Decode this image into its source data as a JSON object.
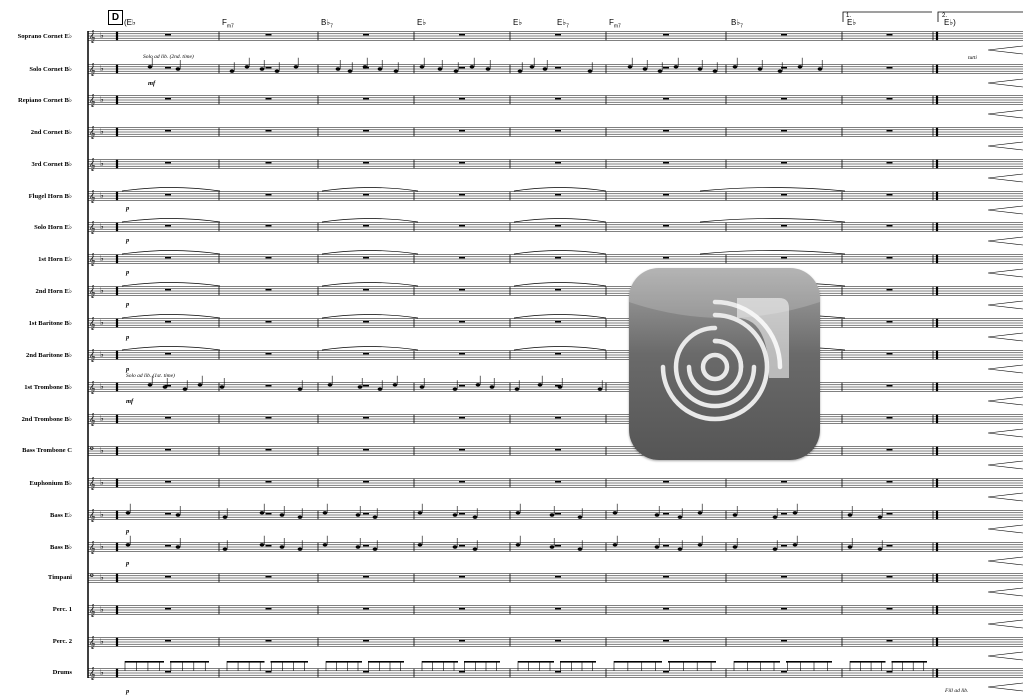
{
  "rehearsal_mark": "D",
  "instruments": [
    "Soprano Cornet E♭",
    "Solo Cornet B♭",
    "Repiano Cornet B♭",
    "2nd Cornet B♭",
    "3rd Cornet B♭",
    "Flugel Horn B♭",
    "Solo Horn E♭",
    "1st Horn E♭",
    "2nd Horn E♭",
    "1st Baritone B♭",
    "2nd Baritone B♭",
    "1st Trombone B♭",
    "2nd Trombone B♭",
    "Bass Trombone C",
    "Euphonium B♭",
    "Bass E♭",
    "Bass B♭",
    "Timpani",
    "Perc. 1",
    "Perc. 2",
    "Drums"
  ],
  "chords": {
    "c1": "(E♭",
    "c2_root": "F",
    "c2_q": "m7",
    "c3_root": "B♭",
    "c3_q": "7",
    "c4": "E♭",
    "c5": "E♭",
    "c6_root": "E♭",
    "c6_q": "7",
    "c7_root": "F",
    "c7_q": "m7",
    "c8_root": "B♭",
    "c8_q": "7",
    "c9": "E♭",
    "c10": "E♭)"
  },
  "endings": {
    "first": "1.",
    "second": "2."
  },
  "annotations": {
    "solo_cornet": "Solo ad lib. (2nd. time)",
    "solo_trombone": "Solo ad lib. (1st. time)",
    "tutti": "tutti",
    "fill": "Fill ad lib."
  },
  "dynamics": {
    "mf": "mf",
    "p": "p"
  },
  "app_icon": "recording-app-icon",
  "colors": {
    "icon_top": "#a4a4a4",
    "icon_bottom": "#555555"
  }
}
